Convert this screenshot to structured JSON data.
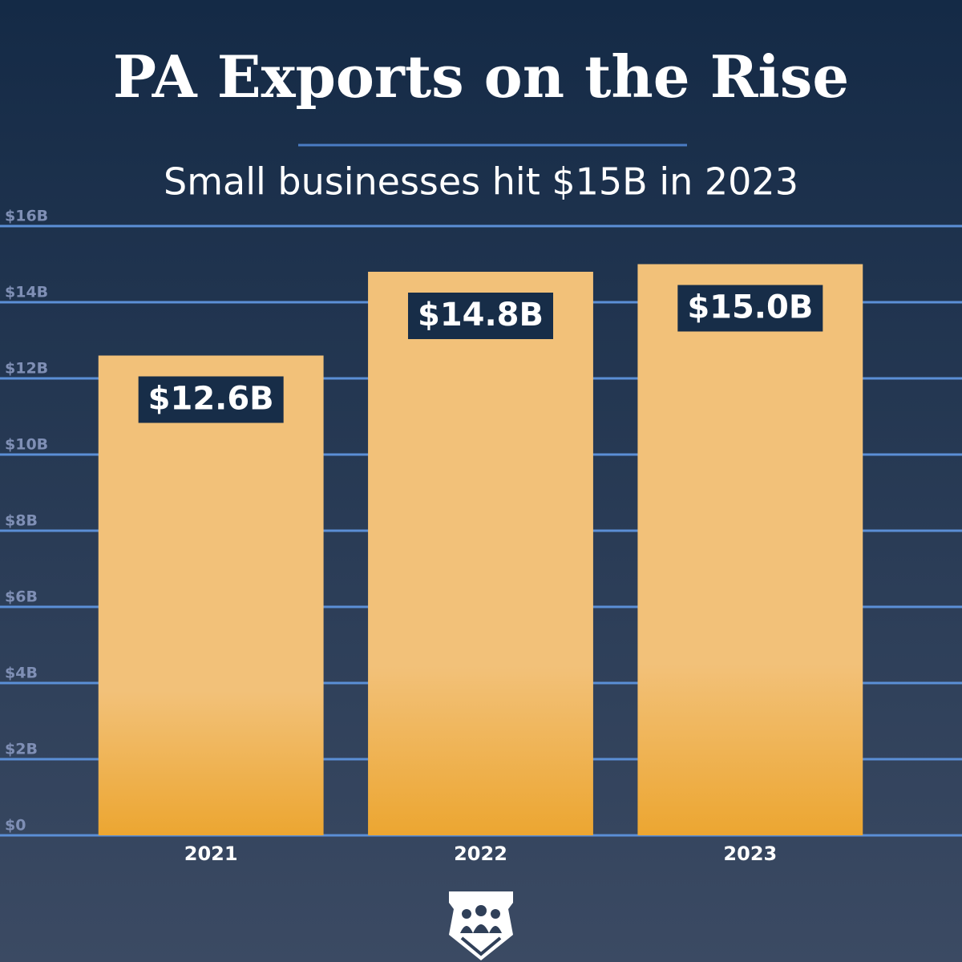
{
  "chart_data": {
    "type": "bar",
    "title": "PA Exports on the Rise",
    "subtitle": "Small businesses hit $15B in 2023",
    "categories": [
      "2021",
      "2022",
      "2023"
    ],
    "values": [
      12.6,
      14.8,
      15.0
    ],
    "value_labels": [
      "$12.6B",
      "$14.8B",
      "$15.0B"
    ],
    "color": "#f2c179",
    "ylim": [
      0,
      16
    ],
    "yticks": [
      {
        "value": 0,
        "label": "$0"
      },
      {
        "value": 2,
        "label": "$2B"
      },
      {
        "value": 4,
        "label": "$4B"
      },
      {
        "value": 6,
        "label": "$6B"
      },
      {
        "value": 8,
        "label": "$8B"
      },
      {
        "value": 10,
        "label": "$10B"
      },
      {
        "value": 12,
        "label": "$12B"
      },
      {
        "value": 14,
        "label": "$14B"
      },
      {
        "value": 16,
        "label": "$16B"
      }
    ],
    "grid": true
  }
}
